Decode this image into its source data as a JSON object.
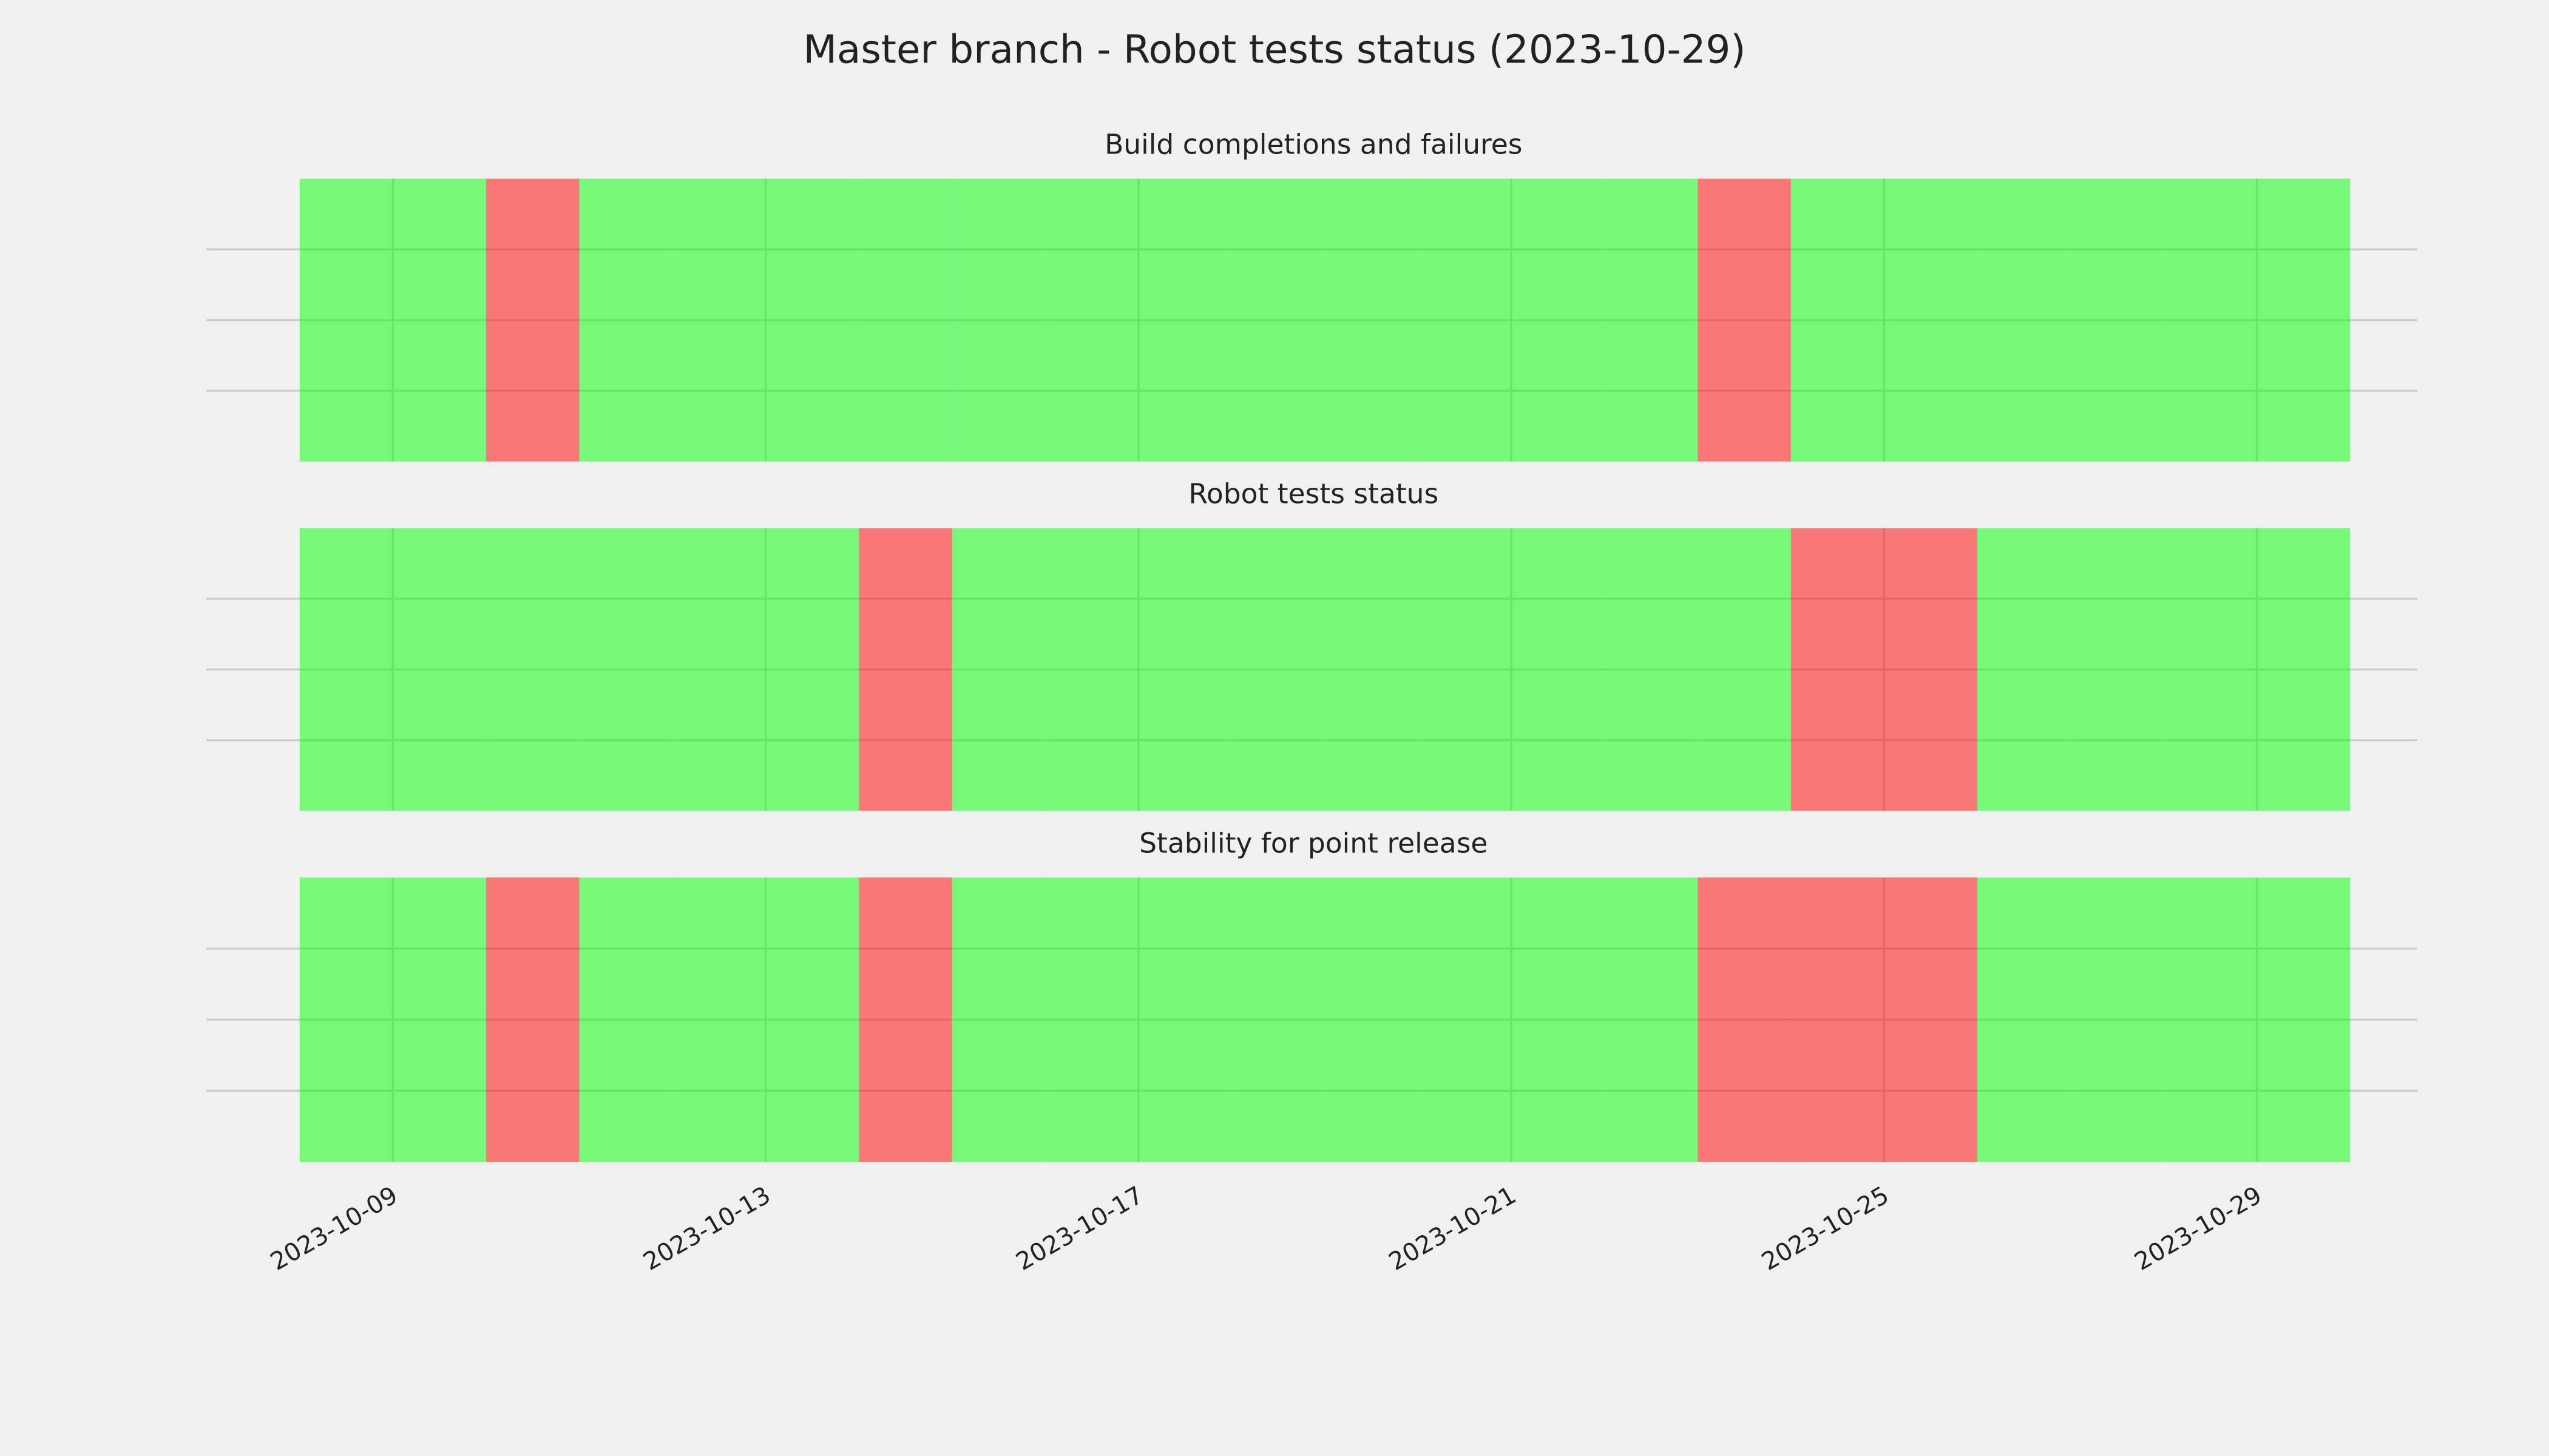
{
  "chart_data": {
    "type": "status-timeline",
    "title": "Master branch - Robot tests status (2023-10-29)",
    "xlim": [
      "2023-10-07",
      "2023-10-31"
    ],
    "xticks": [
      "2023-10-09",
      "2023-10-13",
      "2023-10-17",
      "2023-10-21",
      "2023-10-25",
      "2023-10-29"
    ],
    "ylim": [
      0,
      1
    ],
    "yticks": [
      0.25,
      0.5,
      0.75
    ],
    "grid": true,
    "opacity": 0.5,
    "x": [
      "2023-10-08",
      "2023-10-09",
      "2023-10-10",
      "2023-10-11",
      "2023-10-12",
      "2023-10-13",
      "2023-10-14",
      "2023-10-15",
      "2023-10-16",
      "2023-10-17",
      "2023-10-18",
      "2023-10-19",
      "2023-10-20",
      "2023-10-21",
      "2023-10-22",
      "2023-10-23",
      "2023-10-24",
      "2023-10-25",
      "2023-10-26",
      "2023-10-27",
      "2023-10-28",
      "2023-10-29"
    ],
    "panels": [
      {
        "title": "Build completions and failures",
        "values": [
          1,
          1,
          1,
          1,
          1,
          1,
          1,
          1,
          1,
          1,
          1,
          1,
          1,
          1,
          1,
          1,
          1,
          1,
          1,
          1,
          1,
          1
        ],
        "colors": [
          "#00ff00",
          "#00ff00",
          "#ff0000",
          "#00ff00",
          "#00ff00",
          "#00ff00",
          "#00ff00",
          "#00ff00",
          "#00ff00",
          "#00ff00",
          "#00ff00",
          "#00ff00",
          "#00ff00",
          "#00ff00",
          "#00ff00",
          "#ff0000",
          "#00ff00",
          "#00ff00",
          "#00ff00",
          "#00ff00",
          "#00ff00",
          "#00ff00"
        ]
      },
      {
        "title": "Robot tests status",
        "values": [
          1,
          1,
          1,
          1,
          1,
          1,
          1,
          1,
          1,
          1,
          1,
          1,
          1,
          1,
          1,
          1,
          1,
          1,
          1,
          1,
          1,
          1
        ],
        "colors": [
          "#00ff00",
          "#00ff00",
          "#00ff00",
          "#00ff00",
          "#00ff00",
          "#00ff00",
          "#ff0000",
          "#00ff00",
          "#00ff00",
          "#00ff00",
          "#00ff00",
          "#00ff00",
          "#00ff00",
          "#00ff00",
          "#00ff00",
          "#00ff00",
          "#ff0000",
          "#ff0000",
          "#00ff00",
          "#00ff00",
          "#00ff00",
          "#00ff00"
        ]
      },
      {
        "title": "Stability for point release",
        "values": [
          1,
          1,
          1,
          1,
          1,
          1,
          1,
          1,
          1,
          1,
          1,
          1,
          1,
          1,
          1,
          1,
          1,
          1,
          1,
          1,
          1,
          1
        ],
        "colors": [
          "#00ff00",
          "#00ff00",
          "#ff0000",
          "#00ff00",
          "#00ff00",
          "#00ff00",
          "#ff0000",
          "#00ff00",
          "#00ff00",
          "#00ff00",
          "#00ff00",
          "#00ff00",
          "#00ff00",
          "#00ff00",
          "#00ff00",
          "#ff0000",
          "#ff0000",
          "#ff0000",
          "#00ff00",
          "#00ff00",
          "#00ff00",
          "#00ff00"
        ]
      }
    ]
  }
}
